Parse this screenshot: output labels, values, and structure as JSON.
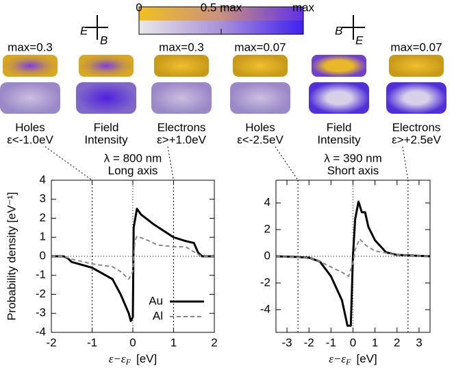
{
  "figure": {
    "colorbar": {
      "ticks": [
        "0",
        "0.5 max",
        "max"
      ]
    },
    "arrows": [
      {
        "labels": [
          "E",
          "B"
        ]
      },
      {
        "labels": [
          "B",
          "E"
        ]
      }
    ],
    "panels": [
      {
        "max_label": "max=0.3",
        "lines": [
          "Holes",
          "ε<-1.0eV"
        ]
      },
      {
        "lines": [
          "Field",
          "Intensity"
        ]
      },
      {
        "max_label": "max=0.3",
        "lines": [
          "Electrons",
          "ε>+1.0eV"
        ]
      },
      {
        "max_label": "max=0.07",
        "lines": [
          "Holes",
          "ε<-2.5eV"
        ]
      },
      {
        "lines": [
          "Field",
          "Intensity"
        ]
      },
      {
        "max_label": "max=0.07",
        "lines": [
          "Electrons",
          "ε>+2.5eV"
        ]
      }
    ]
  },
  "chart_data": [
    {
      "type": "line",
      "title": [
        "λ = 800 nm",
        "Long axis"
      ],
      "ylabel": "Probability density [eV⁻¹]",
      "xlabel": [
        "ε−ε",
        "F",
        "[eV]"
      ],
      "xlim": [
        -2,
        2
      ],
      "xticks": [
        -2,
        -1,
        0,
        1,
        2
      ],
      "ylim": [
        -4,
        4
      ],
      "yticks": [
        -4,
        -3,
        -2,
        -1,
        0,
        1,
        2,
        3,
        4
      ],
      "markers": [
        -1,
        1
      ],
      "zero_lines": true,
      "legend": "lower right",
      "series": [
        {
          "name": "Au",
          "color": "#000000",
          "style": "solid",
          "x": [
            -2,
            -1.7,
            -1.6,
            -1.5,
            -1.0,
            -0.5,
            -0.3,
            -0.1,
            -0.05,
            0,
            0.02,
            0.1,
            0.2,
            0.5,
            1.0,
            1.3,
            1.5,
            1.6,
            1.7,
            2
          ],
          "values": [
            0,
            0,
            -0.1,
            -0.3,
            -0.6,
            -1.2,
            -2,
            -3.0,
            -3.4,
            -3.2,
            1.5,
            2.5,
            2.2,
            1.7,
            1.0,
            0.8,
            0.7,
            0.2,
            0,
            0
          ]
        },
        {
          "name": "Al",
          "color": "#888888",
          "style": "dashed",
          "x": [
            -2,
            -1.7,
            -1.5,
            -1,
            -0.5,
            -0.3,
            -0.1,
            0,
            0.05,
            0.1,
            0.3,
            0.6,
            1.0,
            1.3,
            1.6,
            1.7,
            2
          ],
          "values": [
            0,
            0,
            -0.15,
            -0.4,
            -0.55,
            -0.8,
            -1.2,
            -0.8,
            0.8,
            1.05,
            0.9,
            0.6,
            0.5,
            0.5,
            0.1,
            0,
            0
          ]
        }
      ]
    },
    {
      "type": "line",
      "title": [
        "λ = 390 nm",
        "Short axis"
      ],
      "xlabel": [
        "ε−ε",
        "F",
        "[eV]"
      ],
      "xlim": [
        -3.5,
        3.5
      ],
      "xticks": [
        -3,
        -2,
        -1,
        0,
        1,
        2,
        3
      ],
      "ylim": [
        -5.7,
        5.7
      ],
      "yticks": [
        -4,
        -2,
        0,
        2,
        4
      ],
      "markers": [
        -2.5,
        2.5
      ],
      "zero_lines": true,
      "legend": false,
      "series": [
        {
          "name": "Au",
          "color": "#000000",
          "style": "solid",
          "x": [
            -3.5,
            -2.5,
            -2,
            -1.5,
            -1,
            -0.5,
            -0.25,
            -0.1,
            0,
            0.1,
            0.25,
            0.4,
            0.55,
            0.7,
            1.0,
            1.5,
            2,
            3.5
          ],
          "values": [
            0,
            -0.05,
            -0.1,
            -0.4,
            -1.5,
            -3.3,
            -5.2,
            -5.2,
            0.1,
            2.8,
            4.1,
            3.3,
            3.3,
            2.2,
            1.2,
            0.3,
            0.1,
            0
          ]
        },
        {
          "name": "Al",
          "color": "#888888",
          "style": "dashed",
          "x": [
            -3.5,
            -2,
            -1.5,
            -1,
            -0.5,
            -0.2,
            0,
            0.1,
            0.3,
            0.6,
            1,
            2,
            3.5
          ],
          "values": [
            0,
            -0.1,
            -0.4,
            -0.8,
            -1.2,
            -1.5,
            -0.5,
            0.5,
            1.3,
            0.8,
            0.4,
            0.1,
            0
          ]
        }
      ]
    }
  ]
}
